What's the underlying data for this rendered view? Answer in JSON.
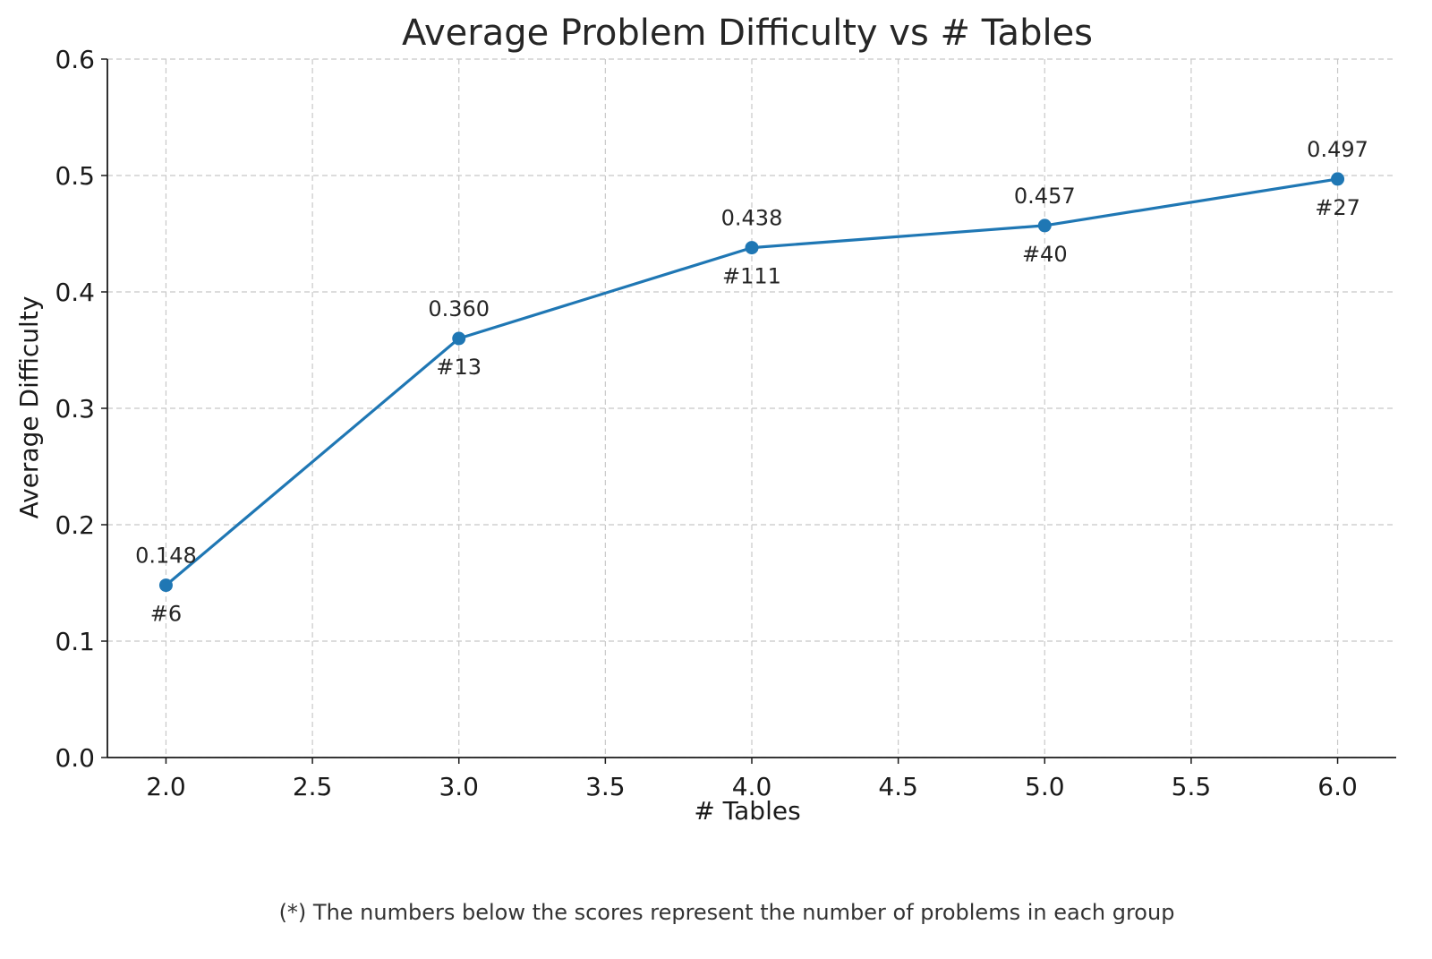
{
  "chart_data": {
    "type": "line",
    "title": "Average Problem Difficulty vs # Tables",
    "xlabel": "# Tables",
    "ylabel": "Average Difficulty",
    "xlim": [
      1.8,
      6.2
    ],
    "ylim": [
      0.0,
      0.6
    ],
    "x_ticks": [
      "2.0",
      "2.5",
      "3.0",
      "3.5",
      "4.0",
      "4.5",
      "5.0",
      "5.5",
      "6.0"
    ],
    "y_ticks": [
      "0.0",
      "0.1",
      "0.2",
      "0.3",
      "0.4",
      "0.5",
      "0.6"
    ],
    "grid": true,
    "line_color": "#1f77b4",
    "series": [
      {
        "x": [
          2,
          3,
          4,
          5,
          6
        ],
        "values": [
          0.148,
          0.36,
          0.438,
          0.457,
          0.497
        ],
        "value_labels": [
          "0.148",
          "0.360",
          "0.438",
          "0.457",
          "0.497"
        ],
        "count_labels": [
          "#6",
          "#13",
          "#111",
          "#40",
          "#27"
        ]
      }
    ]
  },
  "footnote": "(*) The numbers below the scores represent the number of problems in each group"
}
